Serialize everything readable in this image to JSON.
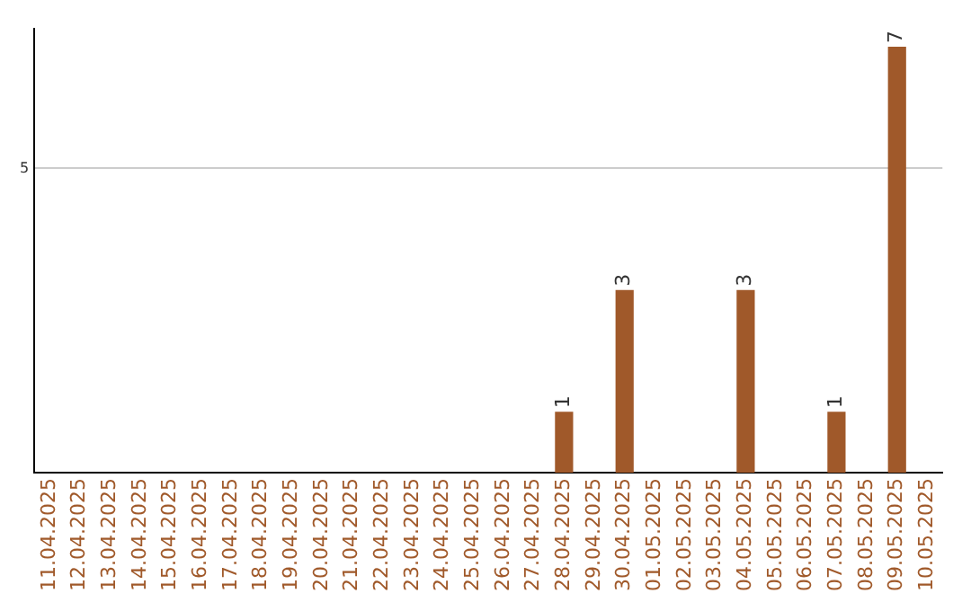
{
  "chart_data": {
    "type": "bar",
    "categories": [
      "11.04.2025",
      "12.04.2025",
      "13.04.2025",
      "14.04.2025",
      "15.04.2025",
      "16.04.2025",
      "17.04.2025",
      "18.04.2025",
      "19.04.2025",
      "20.04.2025",
      "21.04.2025",
      "22.04.2025",
      "23.04.2025",
      "24.04.2025",
      "25.04.2025",
      "26.04.2025",
      "27.04.2025",
      "28.04.2025",
      "29.04.2025",
      "30.04.2025",
      "01.05.2025",
      "02.05.2025",
      "03.05.2025",
      "04.05.2025",
      "05.05.2025",
      "06.05.2025",
      "07.05.2025",
      "08.05.2025",
      "09.05.2025",
      "10.05.2025"
    ],
    "values": [
      null,
      null,
      null,
      null,
      null,
      null,
      null,
      null,
      null,
      null,
      null,
      null,
      null,
      null,
      null,
      null,
      null,
      1,
      null,
      3,
      null,
      null,
      null,
      3,
      null,
      null,
      1,
      null,
      7,
      null
    ],
    "color": "#a0592a",
    "ylim": [
      0,
      7.3
    ],
    "yticks": [
      5
    ],
    "grid": "y",
    "data_labels": true,
    "legend": false
  }
}
